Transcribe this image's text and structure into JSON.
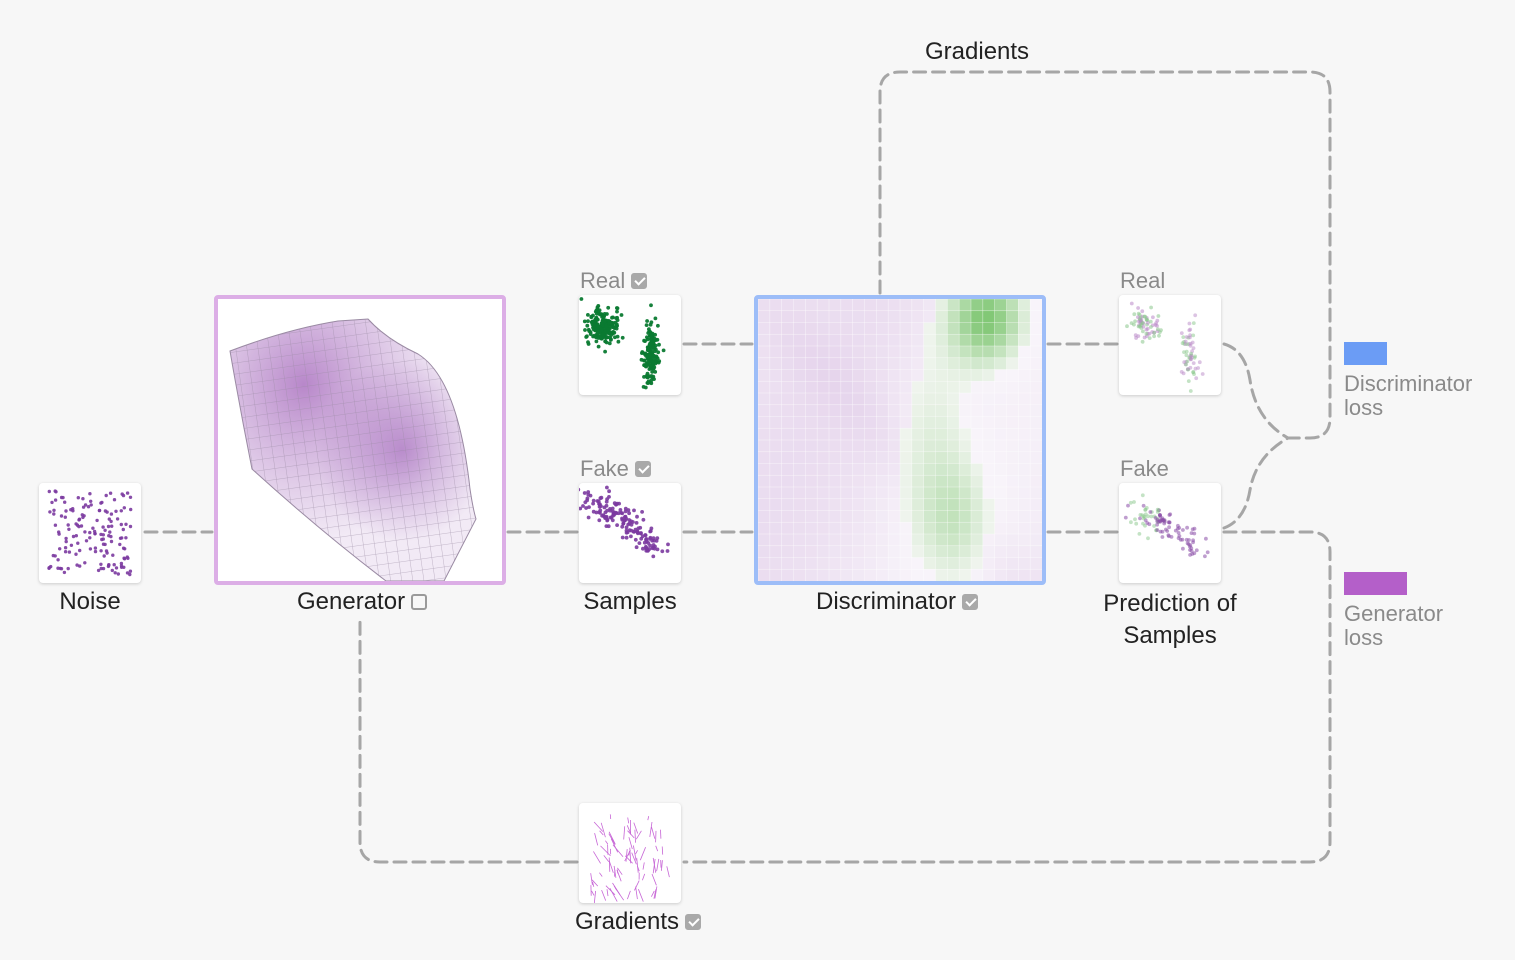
{
  "labels": {
    "noise": "Noise",
    "generator": "Generator",
    "samples": "Samples",
    "discriminator": "Discriminator",
    "prediction_line1": "Prediction of",
    "prediction_line2": "Samples",
    "gradients_top": "Gradients",
    "gradients_bottom": "Gradients",
    "real_samples": "Real",
    "fake_samples": "Fake",
    "real_prediction": "Real",
    "fake_prediction": "Fake"
  },
  "checkboxes": {
    "generator": false,
    "real_samples": true,
    "fake_samples": true,
    "discriminator": true,
    "gradients": true
  },
  "legend": {
    "discriminator_loss": {
      "line1": "Discriminator",
      "line2": "loss",
      "color": "#6b9cf5"
    },
    "generator_loss": {
      "line1": "Generator",
      "line2": "loss",
      "color": "#b45fc9"
    }
  },
  "colors": {
    "background": "#f7f7f7",
    "wire": "#a6a6a6",
    "generator_border": "#dcaee6",
    "discriminator_border": "#9dbdf8",
    "fake_point": "#7b3aa0",
    "real_point": "#0b7a32",
    "gradient_stroke": "#c766d6"
  }
}
